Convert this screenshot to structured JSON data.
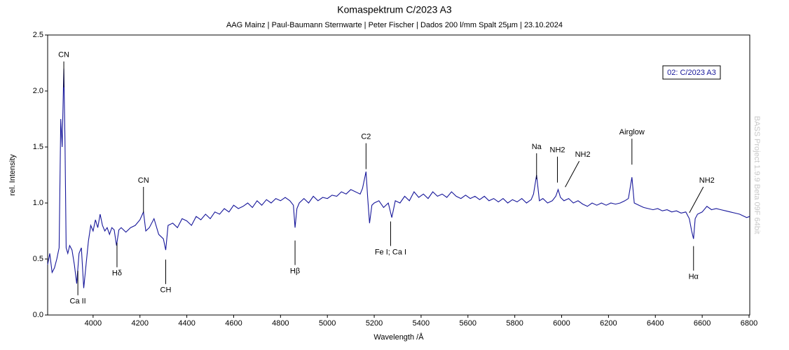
{
  "chart_data": {
    "type": "line",
    "title": "Komaspektrum C/2023 A3",
    "subtitle": "AAG Mainz | Paul-Baumann Sternwarte | Peter Fischer |  Dados 200 l/mm Spalt 25µm | 23.10.2024",
    "x_label": "Wavelength /Å",
    "y_label": "rel. Intensity",
    "watermark": "BASS Project 1.9.9 Beta 09F 64bit",
    "legend": "top-right",
    "xlim": [
      3806,
      6803
    ],
    "ylim": [
      0,
      2.5
    ],
    "xticks": [
      4000,
      4200,
      4400,
      4600,
      4800,
      5000,
      5200,
      5400,
      5600,
      5800,
      6000,
      6200,
      6400,
      6600,
      6800
    ],
    "yticks": [
      {
        "value": 0,
        "label": "0.0"
      },
      0.5,
      {
        "value": 1,
        "label": "1.0"
      },
      1.5,
      {
        "value": 2,
        "label": "2.0"
      },
      2.5
    ],
    "x": [
      3806,
      3815,
      3825,
      3835,
      3845,
      3855,
      3862,
      3868,
      3875,
      3880,
      3885,
      3892,
      3900,
      3910,
      3920,
      3930,
      3940,
      3950,
      3960,
      3970,
      3980,
      3990,
      4000,
      4010,
      4020,
      4030,
      4040,
      4050,
      4060,
      4070,
      4080,
      4090,
      4100,
      4110,
      4120,
      4140,
      4160,
      4180,
      4200,
      4215,
      4225,
      4240,
      4260,
      4280,
      4300,
      4310,
      4320,
      4340,
      4360,
      4380,
      4400,
      4420,
      4440,
      4460,
      4480,
      4500,
      4520,
      4540,
      4560,
      4580,
      4600,
      4620,
      4640,
      4660,
      4680,
      4700,
      4720,
      4740,
      4760,
      4780,
      4800,
      4820,
      4840,
      4855,
      4862,
      4870,
      4880,
      4900,
      4920,
      4940,
      4960,
      4980,
      5000,
      5020,
      5040,
      5060,
      5080,
      5100,
      5120,
      5140,
      5150,
      5165,
      5172,
      5180,
      5190,
      5200,
      5220,
      5240,
      5260,
      5275,
      5290,
      5310,
      5330,
      5350,
      5370,
      5390,
      5410,
      5430,
      5450,
      5470,
      5490,
      5510,
      5530,
      5550,
      5570,
      5590,
      5610,
      5630,
      5650,
      5670,
      5690,
      5710,
      5730,
      5750,
      5770,
      5790,
      5810,
      5830,
      5850,
      5870,
      5880,
      5893,
      5905,
      5920,
      5940,
      5960,
      5975,
      5985,
      5995,
      6010,
      6030,
      6050,
      6070,
      6090,
      6110,
      6130,
      6150,
      6170,
      6190,
      6210,
      6230,
      6250,
      6270,
      6285,
      6300,
      6310,
      6330,
      6350,
      6370,
      6390,
      6410,
      6430,
      6450,
      6470,
      6490,
      6510,
      6530,
      6545,
      6555,
      6563,
      6570,
      6580,
      6600,
      6620,
      6640,
      6660,
      6680,
      6700,
      6720,
      6740,
      6760,
      6780,
      6790,
      6803
    ],
    "series": [
      {
        "name": "02: C/2023 A3",
        "color": "#16169a",
        "values": [
          0.45,
          0.55,
          0.38,
          0.42,
          0.5,
          0.6,
          1.75,
          1.5,
          2.2,
          1.55,
          0.6,
          0.55,
          0.62,
          0.58,
          0.45,
          0.28,
          0.55,
          0.6,
          0.24,
          0.45,
          0.66,
          0.8,
          0.75,
          0.85,
          0.78,
          0.9,
          0.8,
          0.75,
          0.78,
          0.72,
          0.78,
          0.76,
          0.62,
          0.76,
          0.78,
          0.74,
          0.78,
          0.8,
          0.85,
          0.92,
          0.75,
          0.78,
          0.86,
          0.72,
          0.68,
          0.58,
          0.8,
          0.82,
          0.78,
          0.86,
          0.84,
          0.8,
          0.88,
          0.85,
          0.9,
          0.86,
          0.92,
          0.9,
          0.95,
          0.92,
          0.98,
          0.95,
          0.97,
          1.0,
          0.96,
          1.02,
          0.98,
          1.03,
          1.0,
          1.04,
          1.02,
          1.05,
          1.02,
          0.98,
          0.78,
          0.95,
          1.0,
          1.04,
          1.0,
          1.06,
          1.02,
          1.05,
          1.04,
          1.07,
          1.06,
          1.1,
          1.08,
          1.12,
          1.1,
          1.08,
          1.13,
          1.28,
          1.05,
          0.82,
          0.98,
          1.0,
          1.02,
          0.96,
          1.0,
          0.87,
          1.02,
          1.0,
          1.06,
          1.02,
          1.1,
          1.05,
          1.08,
          1.04,
          1.1,
          1.06,
          1.08,
          1.05,
          1.1,
          1.06,
          1.04,
          1.07,
          1.04,
          1.06,
          1.03,
          1.06,
          1.02,
          1.04,
          1.01,
          1.04,
          1.0,
          1.03,
          1.01,
          1.04,
          1.0,
          1.03,
          1.08,
          1.25,
          1.02,
          1.04,
          1.0,
          1.02,
          1.06,
          1.12,
          1.05,
          1.02,
          1.04,
          1.0,
          1.02,
          0.99,
          0.97,
          1.0,
          0.98,
          1.0,
          0.98,
          1.0,
          0.99,
          1.0,
          1.02,
          1.04,
          1.23,
          1.0,
          0.98,
          0.96,
          0.95,
          0.94,
          0.95,
          0.93,
          0.94,
          0.92,
          0.93,
          0.91,
          0.92,
          0.86,
          0.75,
          0.68,
          0.86,
          0.9,
          0.92,
          0.97,
          0.94,
          0.95,
          0.94,
          0.93,
          0.92,
          0.91,
          0.9,
          0.88,
          0.87,
          0.88
        ]
      }
    ],
    "annotations": [
      {
        "text": "CN",
        "x": 3875,
        "y": 2.32
      },
      {
        "text": "Ca II",
        "x": 3935,
        "y": 0.12
      },
      {
        "text": "Hδ",
        "x": 4102,
        "y": 0.37
      },
      {
        "text": "CN",
        "x": 4215,
        "y": 1.2
      },
      {
        "text": "CH",
        "x": 4310,
        "y": 0.22
      },
      {
        "text": "Hβ",
        "x": 4862,
        "y": 0.39
      },
      {
        "text": "C2",
        "x": 5165,
        "y": 1.59
      },
      {
        "text": "Fe I; Ca I",
        "x": 5270,
        "y": 0.56
      },
      {
        "text": "Na",
        "x": 5893,
        "y": 1.5
      },
      {
        "text": "NH2",
        "x": 5982,
        "y": 1.47
      },
      {
        "text": "NH2",
        "x": 6090,
        "y": 1.43
      },
      {
        "text": "Airglow",
        "x": 6300,
        "y": 1.63
      },
      {
        "text": "Hα",
        "x": 6563,
        "y": 0.34
      },
      {
        "text": "NH2",
        "x": 6620,
        "y": 1.2
      }
    ]
  }
}
